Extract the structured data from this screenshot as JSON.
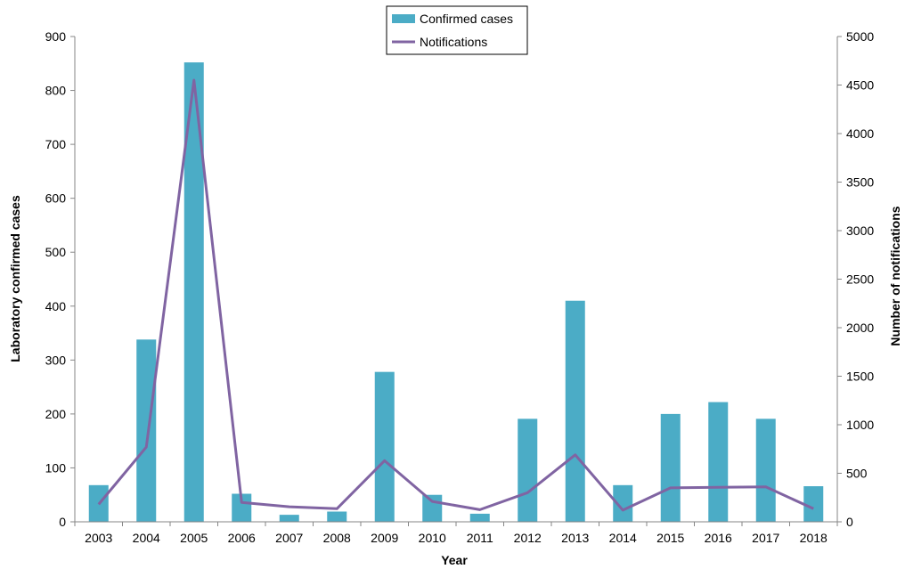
{
  "chart_data": {
    "type": "bar",
    "categories": [
      "2003",
      "2004",
      "2005",
      "2006",
      "2007",
      "2008",
      "2009",
      "2010",
      "2011",
      "2012",
      "2013",
      "2014",
      "2015",
      "2016",
      "2017",
      "2018"
    ],
    "series": [
      {
        "name": "Confirmed cases",
        "type": "bar",
        "axis": "left",
        "color": "#4BACC6",
        "values": [
          68,
          338,
          852,
          52,
          13,
          19,
          278,
          50,
          15,
          191,
          410,
          68,
          200,
          222,
          191,
          66
        ]
      },
      {
        "name": "Notifications",
        "type": "line",
        "axis": "right",
        "color": "#8064A2",
        "values": [
          180,
          770,
          4550,
          200,
          155,
          135,
          630,
          210,
          125,
          300,
          690,
          120,
          350,
          355,
          360,
          135
        ]
      }
    ],
    "xlabel": "Year",
    "ylabel": "Laboratory confirmed cases",
    "y2label": "Number of notifications",
    "ylim": [
      0,
      900
    ],
    "y2lim": [
      0,
      5000
    ],
    "yticks": [
      0,
      100,
      200,
      300,
      400,
      500,
      600,
      700,
      800,
      900
    ],
    "y2ticks": [
      0,
      500,
      1000,
      1500,
      2000,
      2500,
      3000,
      3500,
      4000,
      4500,
      5000
    ],
    "legend_position": "top-center",
    "grid": false
  }
}
